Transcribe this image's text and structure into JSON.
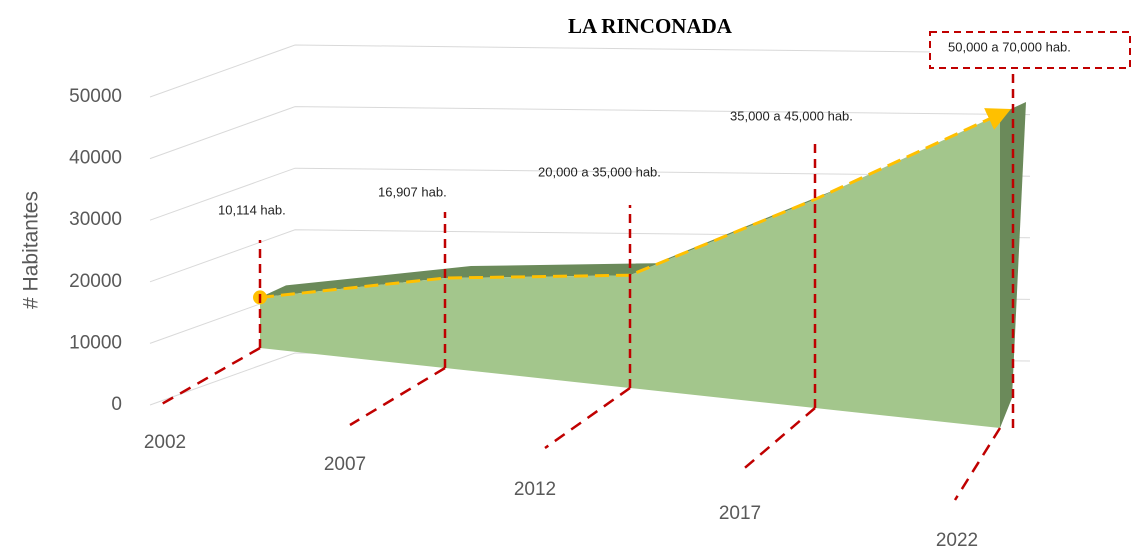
{
  "chart_data": {
    "type": "area3d",
    "title": "LA RINCONADA",
    "ylabel": "# Habitantes",
    "categories": [
      "2002",
      "2007",
      "2012",
      "2017",
      "2022"
    ],
    "values": [
      10114,
      16907,
      20000,
      35000,
      50000
    ],
    "annotations": [
      "10,114 hab.",
      "16,907 hab.",
      "20,000 a 35,000 hab.",
      "35,000 a 45,000 hab.",
      "50,000 a 70,000 hab."
    ],
    "color": "#a3c68c",
    "top_color": "#6b8a5a",
    "trend_color": "#ffc000",
    "marker_color": "#c00000",
    "ylim": [
      0,
      50000
    ],
    "yticks": [
      0,
      10000,
      20000,
      30000,
      40000,
      50000
    ],
    "grid": true
  }
}
